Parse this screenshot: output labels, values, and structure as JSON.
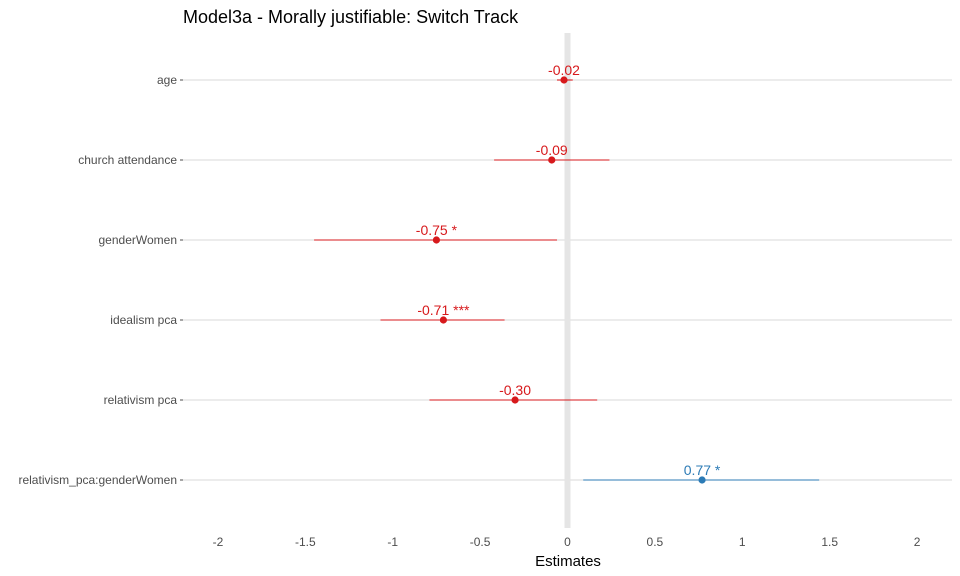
{
  "chart_data": {
    "type": "forest",
    "title": "Model3a - Morally justifiable: Switch Track",
    "xlabel": "Estimates",
    "xlim": [
      -2.2,
      2.2
    ],
    "x_ticks": [
      -2,
      -1.5,
      -1,
      -0.5,
      0,
      0.5,
      1,
      1.5,
      2
    ],
    "x_tick_labels": [
      "-2",
      "-1.5",
      "-1",
      "-0.5",
      "0",
      "0.5",
      "1",
      "1.5",
      "2"
    ],
    "reference_line": 0,
    "grid": "horizontal",
    "colors": {
      "negative": "#d7191c",
      "positive": "#2c7bb6",
      "reference": "#e5e5e5",
      "grid": "#d9d9d9"
    },
    "terms": [
      {
        "term": "age",
        "estimate": -0.02,
        "conf_low": -0.06,
        "conf_high": 0.03,
        "label": "-0.02"
      },
      {
        "term": "church attendance",
        "estimate": -0.09,
        "conf_low": -0.42,
        "conf_high": 0.24,
        "label": "-0.09"
      },
      {
        "term": "genderWomen",
        "estimate": -0.75,
        "conf_low": -1.45,
        "conf_high": -0.06,
        "label": "-0.75 *"
      },
      {
        "term": "idealism pca",
        "estimate": -0.71,
        "conf_low": -1.07,
        "conf_high": -0.36,
        "label": "-0.71 ***"
      },
      {
        "term": "relativism pca",
        "estimate": -0.3,
        "conf_low": -0.79,
        "conf_high": 0.17,
        "label": "-0.30"
      },
      {
        "term": "relativism_pca:genderWomen",
        "estimate": 0.77,
        "conf_low": 0.09,
        "conf_high": 1.44,
        "label": "0.77 *"
      }
    ]
  }
}
